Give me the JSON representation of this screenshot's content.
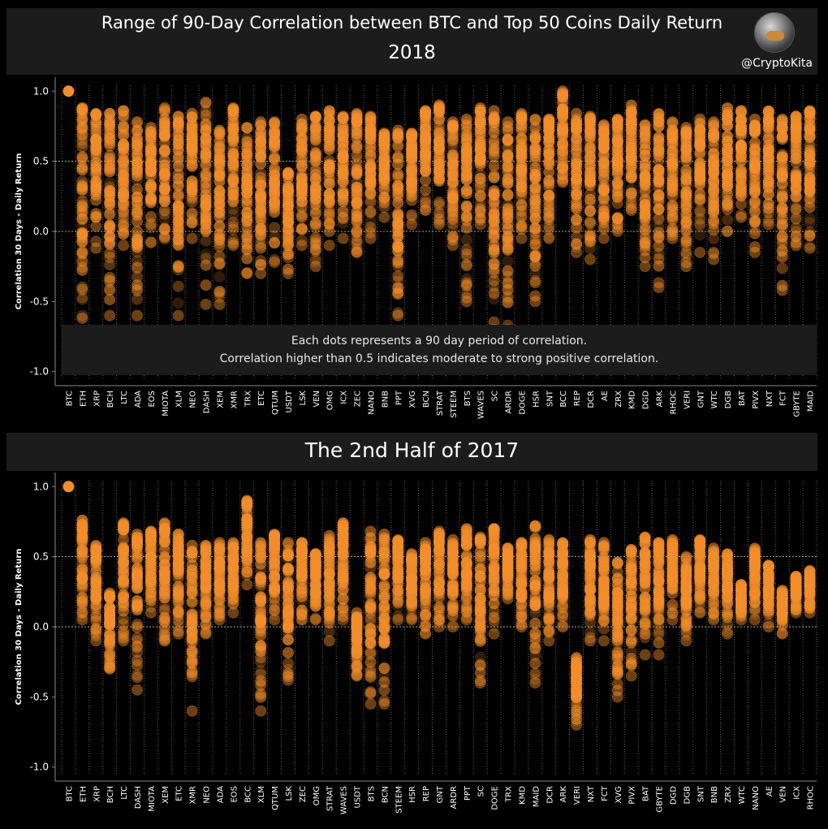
{
  "header": {
    "title": "Range of 90-Day Correlation between BTC and Top 50 Coins Daily Return",
    "subtitle": "2018",
    "handle": "@CryptoKita"
  },
  "section2": {
    "title": "The 2nd Half of 2017"
  },
  "annotation": {
    "line1": "Each dots represents a 90 day period of correlation.",
    "line2": "Correlation higher than 0.5 indicates moderate to strong positive correlation."
  },
  "colors": {
    "dot": "#f28e2b",
    "background": "#000000",
    "banner": "#1c1c1c"
  },
  "chart_data": [
    {
      "type": "scatter",
      "title": "2018",
      "ylabel": "Correlation 30 Days - Daily Return",
      "ylim": [
        -1.1,
        1.1
      ],
      "yticks": [
        1.0,
        0.5,
        0.0,
        -0.5,
        -1.0
      ],
      "ytick_labels": [
        "1.0",
        "0.5",
        "0.0",
        "-0.5",
        "-1.0"
      ],
      "reference_lines": [
        0.5,
        0.0
      ],
      "categories": [
        "BTC",
        "ETH",
        "XRP",
        "BCH",
        "LTC",
        "ADA",
        "EOS",
        "MIOTA",
        "XLM",
        "NEO",
        "DASH",
        "XEM",
        "XMR",
        "TRX",
        "ETC",
        "QTUM",
        "USDT",
        "LSK",
        "VEN",
        "OMG",
        "ICX",
        "ZEC",
        "NANO",
        "BNB",
        "PPT",
        "XVG",
        "BCN",
        "STRAT",
        "STEEM",
        "BTS",
        "WAVES",
        "SC",
        "ARDR",
        "DOGE",
        "HSR",
        "SNT",
        "BCC",
        "REP",
        "DCR",
        "AE",
        "ZRX",
        "KMD",
        "DGD",
        "ARK",
        "RHOC",
        "VERI",
        "GNT",
        "WTC",
        "DGB",
        "BAT",
        "PIVX",
        "NXT",
        "FCT",
        "GBYTE",
        "MAID"
      ],
      "ranges": [
        [
          1.0,
          1.0
        ],
        [
          -0.62,
          0.88
        ],
        [
          -0.12,
          0.84
        ],
        [
          -0.6,
          0.84
        ],
        [
          -0.1,
          0.86
        ],
        [
          -0.6,
          0.78
        ],
        [
          -0.08,
          0.74
        ],
        [
          -0.05,
          0.88
        ],
        [
          -0.6,
          0.82
        ],
        [
          -0.05,
          0.84
        ],
        [
          -0.52,
          0.92
        ],
        [
          -0.52,
          0.72
        ],
        [
          -0.1,
          0.88
        ],
        [
          -0.3,
          0.74
        ],
        [
          -0.3,
          0.78
        ],
        [
          -0.22,
          0.78
        ],
        [
          -0.3,
          0.42
        ],
        [
          -0.1,
          0.8
        ],
        [
          -0.25,
          0.82
        ],
        [
          -0.1,
          0.86
        ],
        [
          -0.05,
          0.82
        ],
        [
          -0.15,
          0.84
        ],
        [
          -0.05,
          0.82
        ],
        [
          0.1,
          0.7
        ],
        [
          -0.6,
          0.72
        ],
        [
          0.05,
          0.7
        ],
        [
          0.15,
          0.86
        ],
        [
          0.05,
          0.9
        ],
        [
          -0.1,
          0.78
        ],
        [
          -0.5,
          0.8
        ],
        [
          0.05,
          0.88
        ],
        [
          -0.7,
          0.86
        ],
        [
          -0.7,
          0.78
        ],
        [
          -0.05,
          0.84
        ],
        [
          -0.5,
          0.8
        ],
        [
          -0.05,
          0.8
        ],
        [
          0.35,
          1.0
        ],
        [
          -0.15,
          0.84
        ],
        [
          -0.2,
          0.82
        ],
        [
          -0.05,
          0.76
        ],
        [
          0.0,
          0.8
        ],
        [
          0.15,
          0.9
        ],
        [
          -0.25,
          0.76
        ],
        [
          -0.4,
          0.84
        ],
        [
          -0.05,
          0.78
        ],
        [
          -0.25,
          0.74
        ],
        [
          -0.15,
          0.8
        ],
        [
          -0.2,
          0.78
        ],
        [
          0.0,
          0.88
        ],
        [
          0.1,
          0.86
        ],
        [
          -0.15,
          0.8
        ],
        [
          0.05,
          0.86
        ],
        [
          -0.42,
          0.8
        ],
        [
          -0.1,
          0.82
        ],
        [
          -0.12,
          0.86
        ]
      ]
    },
    {
      "type": "scatter",
      "title": "The 2nd Half of 2017",
      "ylabel": "Correlation 30 Days - Daily Return",
      "ylim": [
        -1.1,
        1.1
      ],
      "yticks": [
        1.0,
        0.5,
        0.0,
        -0.5,
        -1.0
      ],
      "ytick_labels": [
        "1.0",
        "0.5",
        "0.0",
        "-0.5",
        "-1.0"
      ],
      "reference_lines": [
        0.5,
        0.0
      ],
      "categories": [
        "BTC",
        "ETH",
        "XRP",
        "BCH",
        "LTC",
        "DASH",
        "MIOTA",
        "XEM",
        "ETC",
        "XMR",
        "NEO",
        "ADA",
        "EOS",
        "BCC",
        "XLM",
        "QTUM",
        "LSK",
        "ZEC",
        "OMG",
        "STRAT",
        "WAVES",
        "USDT",
        "BTS",
        "BCN",
        "STEEM",
        "HSR",
        "REP",
        "GNT",
        "ARDR",
        "PPT",
        "SC",
        "DOGE",
        "TRX",
        "KMD",
        "MAID",
        "DCR",
        "ARK",
        "VERI",
        "NXT",
        "FCT",
        "XVG",
        "PIVX",
        "BAT",
        "GBYTE",
        "DGD",
        "DGB",
        "SNT",
        "BNB",
        "ZRX",
        "WTC",
        "NANO",
        "AE",
        "VEN",
        "ICX",
        "RHOC"
      ],
      "ranges": [
        [
          1.0,
          1.0
        ],
        [
          0.05,
          0.76
        ],
        [
          -0.1,
          0.58
        ],
        [
          -0.3,
          0.24
        ],
        [
          -0.1,
          0.74
        ],
        [
          -0.45,
          0.66
        ],
        [
          0.1,
          0.68
        ],
        [
          -0.1,
          0.74
        ],
        [
          -0.05,
          0.66
        ],
        [
          -0.6,
          0.58
        ],
        [
          -0.05,
          0.58
        ],
        [
          0.05,
          0.6
        ],
        [
          0.1,
          0.6
        ],
        [
          0.3,
          0.9
        ],
        [
          -0.6,
          0.6
        ],
        [
          0.05,
          0.66
        ],
        [
          -0.38,
          0.6
        ],
        [
          0.05,
          0.6
        ],
        [
          0.05,
          0.52
        ],
        [
          -0.1,
          0.65
        ],
        [
          0.05,
          0.74
        ],
        [
          -0.35,
          0.1
        ],
        [
          -0.55,
          0.68
        ],
        [
          -0.55,
          0.66
        ],
        [
          0.05,
          0.62
        ],
        [
          0.05,
          0.52
        ],
        [
          -0.05,
          0.6
        ],
        [
          0.0,
          0.68
        ],
        [
          0.0,
          0.62
        ],
        [
          0.05,
          0.7
        ],
        [
          -0.4,
          0.64
        ],
        [
          -0.05,
          0.7
        ],
        [
          0.2,
          0.56
        ],
        [
          0.0,
          0.6
        ],
        [
          -0.4,
          0.72
        ],
        [
          -0.1,
          0.62
        ],
        [
          0.0,
          0.6
        ],
        [
          -0.7,
          -0.22
        ],
        [
          -0.1,
          0.62
        ],
        [
          -0.1,
          0.6
        ],
        [
          -0.5,
          0.46
        ],
        [
          -0.35,
          0.55
        ],
        [
          -0.2,
          0.64
        ],
        [
          -0.2,
          0.6
        ],
        [
          0.05,
          0.62
        ],
        [
          -0.1,
          0.5
        ],
        [
          0.1,
          0.62
        ],
        [
          0.05,
          0.56
        ],
        [
          -0.05,
          0.52
        ],
        [
          0.05,
          0.3
        ],
        [
          0.05,
          0.56
        ],
        [
          0.0,
          0.44
        ],
        [
          -0.05,
          0.26
        ],
        [
          0.1,
          0.36
        ],
        [
          0.1,
          0.4
        ]
      ]
    }
  ]
}
